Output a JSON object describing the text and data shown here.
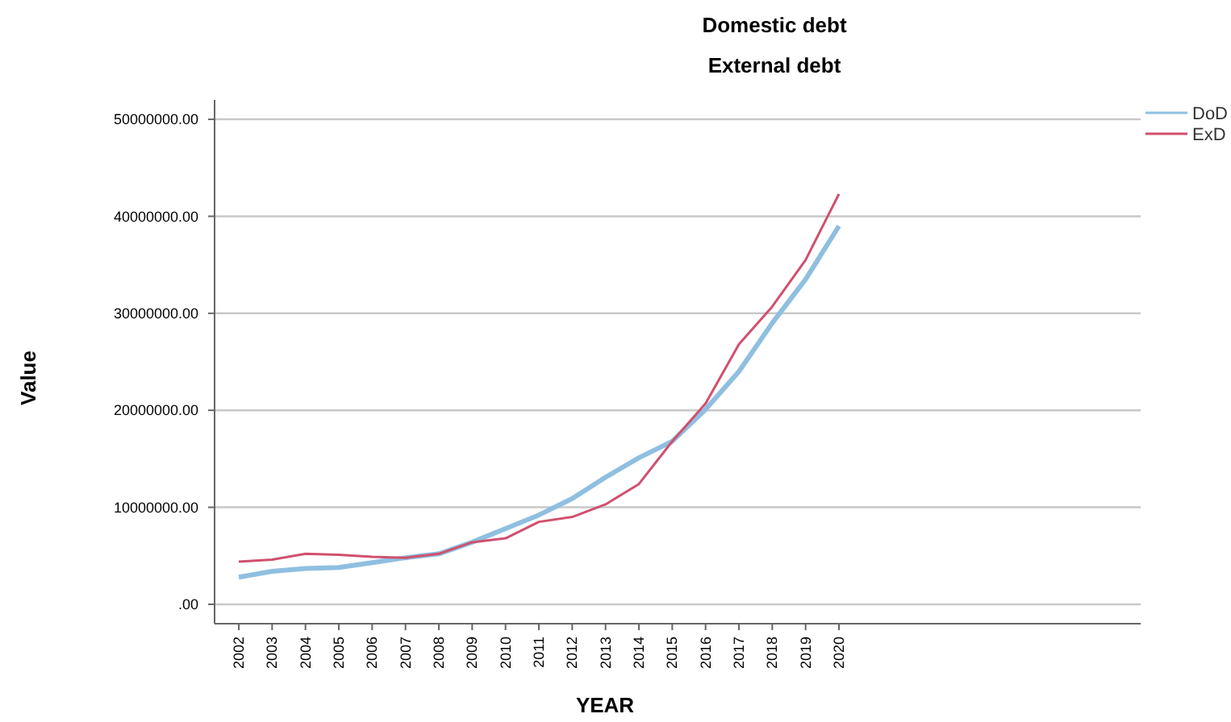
{
  "chart_data": {
    "type": "line",
    "title": "Domestic debt",
    "subtitle": "External debt",
    "xlabel": "YEAR",
    "ylabel": "Value",
    "categories": [
      "2002",
      "2003",
      "2004",
      "2005",
      "2006",
      "2007",
      "2008",
      "2009",
      "2010",
      "2011",
      "2012",
      "2013",
      "2014",
      "2015",
      "2016",
      "2017",
      "2018",
      "2019",
      "2020"
    ],
    "series": [
      {
        "name": "DoD",
        "color": "#8fbfe0",
        "values": [
          2800000,
          3400000,
          3700000,
          3800000,
          4300000,
          4800000,
          5200000,
          6400000,
          7800000,
          9200000,
          10900000,
          13100000,
          15100000,
          16800000,
          20100000,
          24000000,
          29000000,
          33500000,
          39000000
        ]
      },
      {
        "name": "ExD",
        "color": "#d0506e",
        "values": [
          4400000,
          4600000,
          5200000,
          5100000,
          4900000,
          4800000,
          5200000,
          6400000,
          6800000,
          8500000,
          9000000,
          10300000,
          12400000,
          16800000,
          20700000,
          26800000,
          30700000,
          35500000,
          42300000
        ]
      }
    ],
    "ylim": [
      -2000000,
      52000000
    ],
    "yticks": [
      {
        "value": 0,
        "label": ".00"
      },
      {
        "value": 10000000,
        "label": "10000000.00"
      },
      {
        "value": 20000000,
        "label": "20000000.00"
      },
      {
        "value": 30000000,
        "label": "30000000.00"
      },
      {
        "value": 40000000,
        "label": "40000000.00"
      },
      {
        "value": 50000000,
        "label": "50000000.00"
      }
    ],
    "grid": "y",
    "legend": "top right",
    "marker": "none",
    "line_style": "solid"
  }
}
